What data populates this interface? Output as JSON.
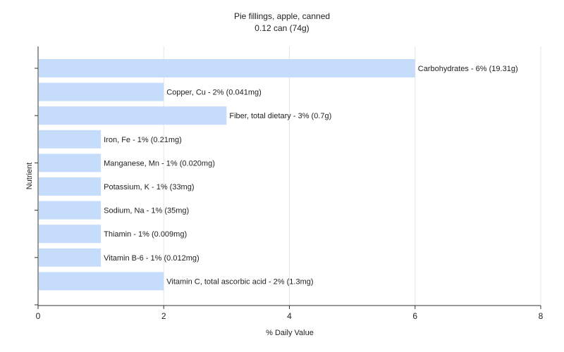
{
  "chart_data": {
    "type": "bar",
    "orientation": "horizontal",
    "title": "Pie fillings, apple, canned",
    "subtitle": "0.12 can (74g)",
    "xlabel": "% Daily Value",
    "ylabel": "Nutrient",
    "xlim": [
      0,
      8
    ],
    "xticks": [
      "0",
      "2",
      "4",
      "6",
      "8"
    ],
    "grid": true,
    "bar_color": "#c6dcfb",
    "categories": [
      "Carbohydrates",
      "Copper, Cu",
      "Fiber, total dietary",
      "Iron, Fe",
      "Manganese, Mn",
      "Potassium, K",
      "Sodium, Na",
      "Thiamin",
      "Vitamin B-6",
      "Vitamin C, total ascorbic acid"
    ],
    "values": [
      6,
      2,
      3,
      1,
      1,
      1,
      1,
      1,
      1,
      2
    ],
    "labels": [
      "Carbohydrates - 6% (19.31g)",
      "Copper, Cu - 2% (0.041mg)",
      "Fiber, total dietary - 3% (0.7g)",
      "Iron, Fe - 1% (0.21mg)",
      "Manganese, Mn - 1% (0.020mg)",
      "Potassium, K - 1% (33mg)",
      "Sodium, Na - 1% (35mg)",
      "Thiamin - 1% (0.009mg)",
      "Vitamin B-6 - 1% (0.012mg)",
      "Vitamin C, total ascorbic acid - 2% (1.3mg)"
    ]
  }
}
